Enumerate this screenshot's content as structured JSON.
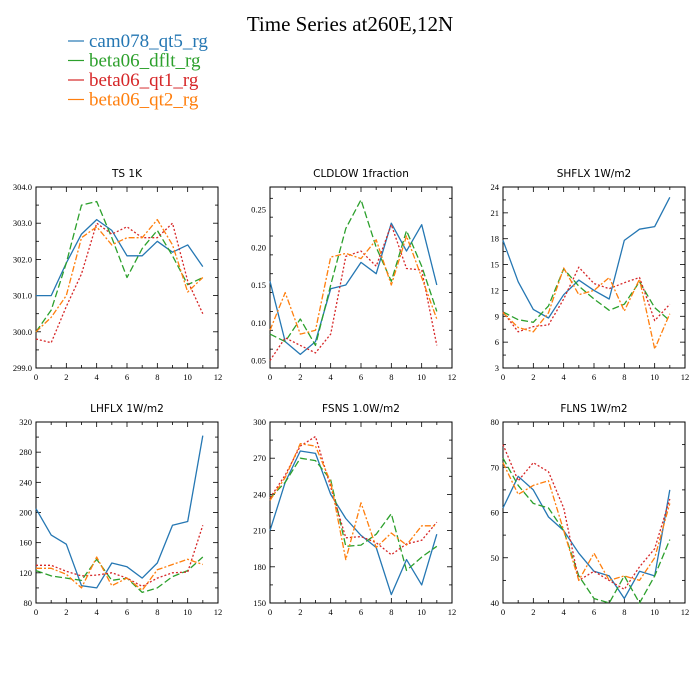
{
  "chart_data": {
    "type": "line",
    "title": "Time Series at260E,12N",
    "legend": {
      "placement": "top-left",
      "entries": [
        {
          "name": "cam078_qt5_rg",
          "color": "#2577b3",
          "dash": "solid"
        },
        {
          "name": "beta06_dflt_rg",
          "color": "#2ca02c",
          "dash": "longdash"
        },
        {
          "name": "beta06_qt1_rg",
          "color": "#d62728",
          "dash": "dot"
        },
        {
          "name": "beta06_qt2_rg",
          "color": "#ff7f0e",
          "dash": "dashdot"
        }
      ]
    },
    "panels": [
      {
        "title": "TS   1K",
        "xlim": [
          0,
          12
        ],
        "xticks": [
          0,
          2,
          4,
          6,
          8,
          10,
          12
        ],
        "ylim": [
          299.0,
          304.0
        ],
        "yticks": [
          299.0,
          300.0,
          301.0,
          302.0,
          303.0,
          304.0
        ],
        "ytick_labels": [
          "299.0",
          "300.0",
          "301.0",
          "302.0",
          "303.0",
          "304.0"
        ],
        "x": [
          0,
          1,
          2,
          3,
          4,
          5,
          6,
          7,
          8,
          9,
          10,
          11
        ],
        "series": [
          {
            "values": [
              301.0,
              301.0,
              301.9,
              302.7,
              303.1,
              302.8,
              302.1,
              302.1,
              302.5,
              302.2,
              302.4,
              301.8
            ]
          },
          {
            "values": [
              300.0,
              300.6,
              301.9,
              303.5,
              303.6,
              302.6,
              301.5,
              302.3,
              302.8,
              302.1,
              301.3,
              301.5
            ]
          },
          {
            "values": [
              299.8,
              299.7,
              300.7,
              301.6,
              303.0,
              302.7,
              302.9,
              302.6,
              302.6,
              303.0,
              301.4,
              300.5
            ]
          },
          {
            "values": [
              300.0,
              300.4,
              301.0,
              302.6,
              302.9,
              302.4,
              302.6,
              302.6,
              303.1,
              302.4,
              301.1,
              301.5
            ]
          }
        ]
      },
      {
        "title": "CLDLOW   1fraction",
        "xlim": [
          0,
          12
        ],
        "xticks": [
          0,
          2,
          4,
          6,
          8,
          10,
          12
        ],
        "ylim": [
          0.04,
          0.28
        ],
        "yticks": [
          0.05,
          0.1,
          0.15,
          0.2,
          0.25
        ],
        "ytick_labels": [
          "0.05",
          "0.10",
          "0.15",
          "0.20",
          "0.25"
        ],
        "x": [
          0,
          1,
          2,
          3,
          4,
          5,
          6,
          7,
          8,
          9,
          10,
          11
        ],
        "series": [
          {
            "values": [
              0.155,
              0.075,
              0.058,
              0.075,
              0.145,
              0.15,
              0.18,
              0.165,
              0.232,
              0.195,
              0.23,
              0.15
            ]
          },
          {
            "values": [
              0.085,
              0.075,
              0.105,
              0.07,
              0.15,
              0.225,
              0.263,
              0.2,
              0.155,
              0.222,
              0.175,
              0.115
            ]
          },
          {
            "values": [
              0.05,
              0.08,
              0.07,
              0.06,
              0.085,
              0.188,
              0.195,
              0.175,
              0.23,
              0.172,
              0.17,
              0.07
            ]
          },
          {
            "values": [
              0.09,
              0.14,
              0.085,
              0.09,
              0.187,
              0.192,
              0.185,
              0.21,
              0.15,
              0.215,
              0.16,
              0.105
            ]
          }
        ]
      },
      {
        "title": "SHFLX   1W/m2",
        "xlim": [
          0,
          12
        ],
        "xticks": [
          0,
          2,
          4,
          6,
          8,
          10,
          12
        ],
        "ylim": [
          3,
          24
        ],
        "yticks": [
          3,
          6,
          9,
          12,
          15,
          18,
          21,
          24
        ],
        "ytick_labels": [
          "3",
          "6",
          "9",
          "12",
          "15",
          "18",
          "21",
          "24"
        ],
        "x": [
          0,
          1,
          2,
          3,
          4,
          5,
          6,
          7,
          8,
          9,
          10,
          11
        ],
        "series": [
          {
            "values": [
              17.8,
              13.0,
              9.8,
              8.8,
              11.5,
              13.2,
              12.0,
              11.0,
              17.8,
              19.1,
              19.4,
              22.8
            ]
          },
          {
            "values": [
              9.5,
              8.6,
              8.3,
              10.2,
              14.5,
              12.5,
              11.0,
              9.7,
              10.4,
              13.0,
              10.0,
              8.5
            ]
          },
          {
            "values": [
              9.5,
              7.2,
              7.8,
              8.0,
              11.0,
              14.7,
              12.8,
              12.2,
              12.9,
              13.5,
              8.5,
              10.4
            ]
          },
          {
            "values": [
              9.4,
              7.7,
              7.2,
              9.4,
              14.6,
              11.5,
              12.0,
              13.5,
              9.6,
              13.3,
              5.2,
              9.3
            ]
          }
        ]
      },
      {
        "title": "LHFLX   1W/m2",
        "xlim": [
          0,
          12
        ],
        "xticks": [
          0,
          2,
          4,
          6,
          8,
          10,
          12
        ],
        "ylim": [
          80,
          320
        ],
        "yticks": [
          80,
          120,
          160,
          200,
          240,
          280,
          320
        ],
        "ytick_labels": [
          "80",
          "120",
          "160",
          "200",
          "240",
          "280",
          "320"
        ],
        "x": [
          0,
          1,
          2,
          3,
          4,
          5,
          6,
          7,
          8,
          9,
          10,
          11
        ],
        "series": [
          {
            "values": [
              205,
              170,
              158,
              103,
              100,
              133,
              128,
              113,
              133,
              183,
              188,
              302
            ]
          },
          {
            "values": [
              123,
              116,
              113,
              110,
              138,
              110,
              113,
              94,
              100,
              115,
              123,
              141
            ]
          },
          {
            "values": [
              130,
              130,
              122,
              116,
              117,
              120,
              113,
              102,
              113,
              120,
              121,
              183
            ]
          },
          {
            "values": [
              126,
              126,
              118,
              100,
              141,
              103,
              113,
              97,
              124,
              131,
              138,
              131
            ]
          }
        ]
      },
      {
        "title": "FSNS   1.0W/m2",
        "xlim": [
          0,
          12
        ],
        "xticks": [
          0,
          2,
          4,
          6,
          8,
          10,
          12
        ],
        "ylim": [
          150,
          300
        ],
        "yticks": [
          150,
          180,
          210,
          240,
          270,
          300
        ],
        "ytick_labels": [
          "150",
          "180",
          "210",
          "240",
          "270",
          "300"
        ],
        "x": [
          0,
          1,
          2,
          3,
          4,
          5,
          6,
          7,
          8,
          9,
          10,
          11
        ],
        "series": [
          {
            "values": [
              210,
              250,
              276,
              274,
              240,
              220,
              206,
              196,
              157,
              186,
              165,
              207
            ]
          },
          {
            "values": [
              237,
              250,
              270,
              268,
              252,
              197,
              198,
              207,
              224,
              177,
              188,
              197
            ]
          },
          {
            "values": [
              237,
              256,
              280,
              288,
              246,
              204,
              205,
              200,
              190,
              199,
              202,
              217
            ]
          },
          {
            "values": [
              235,
              254,
              282,
              280,
              250,
              186,
              233,
              196,
              208,
              198,
              214,
              214
            ]
          }
        ]
      },
      {
        "title": "FLNS   1W/m2",
        "xlim": [
          0,
          12
        ],
        "xticks": [
          0,
          2,
          4,
          6,
          8,
          10,
          12
        ],
        "ylim": [
          40,
          80
        ],
        "yticks": [
          40,
          50,
          60,
          70,
          80
        ],
        "ytick_labels": [
          "40",
          "50",
          "60",
          "70",
          "80"
        ],
        "x": [
          0,
          1,
          2,
          3,
          4,
          5,
          6,
          7,
          8,
          9,
          10,
          11
        ],
        "series": [
          {
            "values": [
              61,
              68,
              65,
              59,
              56,
              51,
              47,
              46,
              41,
              47,
              46,
              65
            ]
          },
          {
            "values": [
              72,
              66,
              62,
              61,
              56,
              46,
              41,
              40,
              46,
              40,
              46,
              54
            ]
          },
          {
            "values": [
              75,
              67,
              71,
              69,
              61,
              45,
              47,
              45,
              43,
              48,
              52,
              63
            ]
          },
          {
            "values": [
              71,
              64,
              66,
              67,
              56,
              45,
              51,
              45,
              46,
              45,
              50,
              62
            ]
          }
        ]
      }
    ]
  }
}
